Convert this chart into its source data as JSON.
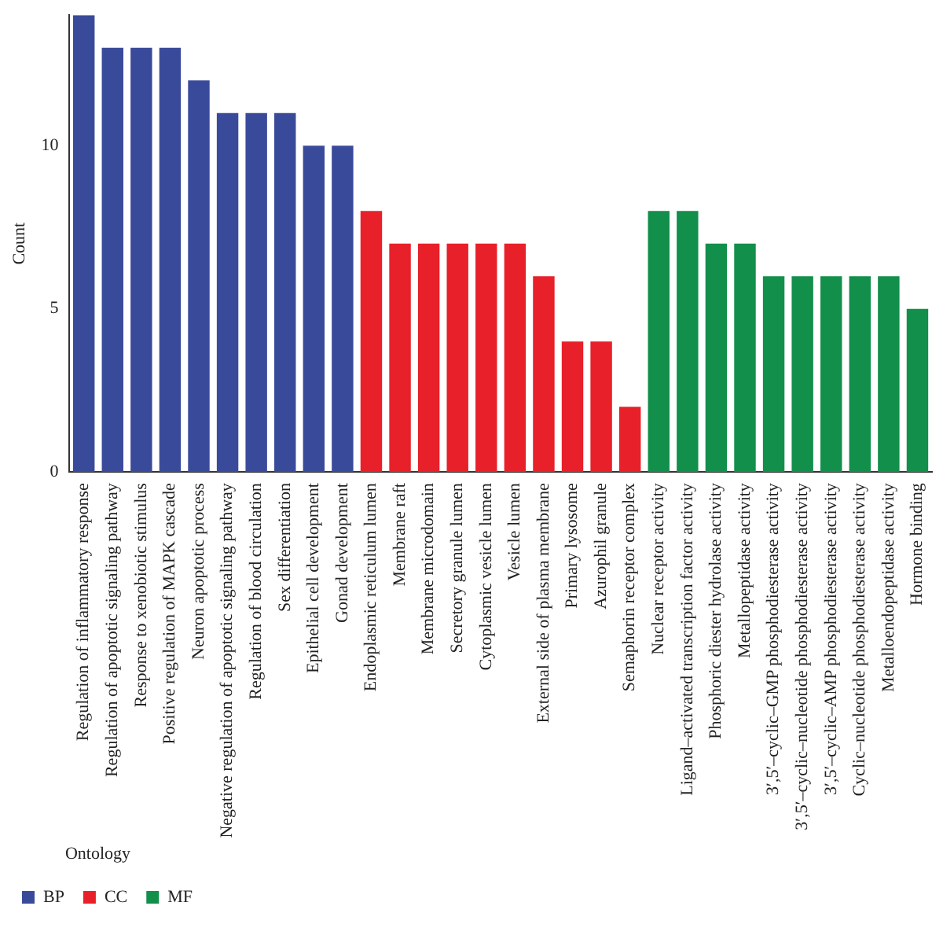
{
  "chart_data": {
    "type": "bar",
    "ylabel": "Count",
    "legend_title": "Ontology",
    "legend": "bottom left",
    "categories": [
      "Regulation of inflammatory response",
      "Regulation of apoptotic signaling pathway",
      "Response to xenobiotic stimulus",
      "Positive regulation of MAPK cascade",
      "Neuron apoptotic process",
      "Negative regulation of apoptotic signaling pathway",
      "Regulation of blood circulation",
      "Sex differentiation",
      "Epithelial cell development",
      "Gonad development",
      "Endoplasmic reticulum lumen",
      "Membrane raft",
      "Membrane microdomain",
      "Secretory granule lumen",
      "Cytoplasmic vesicle lumen",
      "Vesicle lumen",
      "External side of plasma membrane",
      "Primary lysosome",
      "Azurophil granule",
      "Semaphorin receptor complex",
      "Nuclear receptor activity",
      "Ligand–activated transcription factor activity",
      "Phosphoric diester hydrolase activity",
      "Metallopeptidase activity",
      "3′,5′–cyclic–GMP phosphodiesterase activity",
      "3′,5′–cyclic–nucleotide phosphodiesterase activity",
      "3′,5′–cyclic–AMP phosphodiesterase activity",
      "Cyclic–nucleotide phosphodiesterase activity",
      "Metalloendopeptidase activity",
      "Hormone binding"
    ],
    "series": [
      {
        "name": "BP",
        "color": "#3a4a9b",
        "values": [
          14,
          13,
          13,
          13,
          12,
          11,
          11,
          11,
          10,
          10,
          null,
          null,
          null,
          null,
          null,
          null,
          null,
          null,
          null,
          null,
          null,
          null,
          null,
          null,
          null,
          null,
          null,
          null,
          null,
          null
        ]
      },
      {
        "name": "CC",
        "color": "#e8202a",
        "values": [
          null,
          null,
          null,
          null,
          null,
          null,
          null,
          null,
          null,
          null,
          8,
          7,
          7,
          7,
          7,
          7,
          6,
          4,
          4,
          2,
          null,
          null,
          null,
          null,
          null,
          null,
          null,
          null,
          null,
          null
        ]
      },
      {
        "name": "MF",
        "color": "#128f4a",
        "values": [
          null,
          null,
          null,
          null,
          null,
          null,
          null,
          null,
          null,
          null,
          null,
          null,
          null,
          null,
          null,
          null,
          null,
          null,
          null,
          null,
          8,
          8,
          7,
          7,
          6,
          6,
          6,
          6,
          6,
          5
        ]
      }
    ],
    "ylim": [
      0,
      14
    ],
    "yticks": [
      0,
      5,
      10
    ],
    "grid": false
  }
}
